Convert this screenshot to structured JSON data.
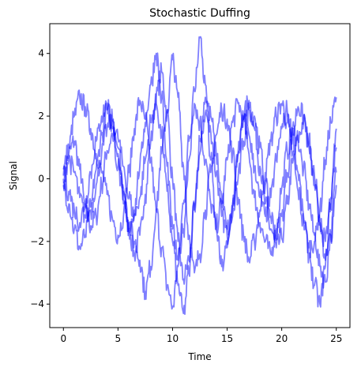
{
  "chart_data": {
    "type": "line",
    "title": "Stochastic Duffing",
    "xlabel": "Time",
    "ylabel": "Signal",
    "xlim": [
      -1.25,
      26.25
    ],
    "ylim": [
      -4.75,
      4.95
    ],
    "xticks": [
      0,
      5,
      10,
      15,
      20,
      25
    ],
    "yticks": [
      -4,
      -2,
      0,
      2,
      4
    ],
    "xtick_labels": [
      "0",
      "5",
      "10",
      "15",
      "20",
      "25"
    ],
    "ytick_labels": [
      "−4",
      "−2",
      "0",
      "2",
      "4"
    ],
    "grid": false,
    "legend": "none",
    "line_color": "#0000ff",
    "line_alpha": 0.5,
    "series": [
      {
        "x": [
          0,
          0.5,
          1,
          1.5,
          2,
          2.5,
          3,
          3.5,
          4,
          4.5,
          5,
          5.5,
          6,
          6.5,
          7,
          7.5,
          8,
          8.5,
          9,
          9.5,
          10,
          10.5,
          11,
          11.5,
          12,
          12.5,
          13,
          13.5,
          14,
          14.5,
          15,
          15.5,
          16,
          16.5,
          17,
          17.5,
          18,
          18.5,
          19,
          19.5,
          20,
          20.5,
          21,
          21.5,
          22,
          22.5,
          23,
          23.5,
          24,
          24.5,
          25
        ],
        "y": [
          0,
          0.8,
          1.2,
          0.3,
          -0.9,
          -1.5,
          -1.2,
          -0.2,
          0.9,
          1.4,
          1.0,
          -0.3,
          -1.6,
          -2.4,
          -1.8,
          -0.5,
          1.2,
          2.6,
          3.4,
          2.1,
          0.0,
          -2.0,
          -3.2,
          -2.6,
          -1.0,
          0.8,
          2.1,
          1.5,
          0.2,
          -1.2,
          -1.8,
          -0.9,
          0.8,
          2.0,
          2.5,
          1.6,
          0.4,
          -0.8,
          -1.6,
          -2.2,
          -1.9,
          -0.8,
          0.5,
          1.3,
          1.8,
          1.2,
          0.1,
          -1.3,
          -2.6,
          -1.8,
          -0.2
        ]
      },
      {
        "x": [
          0,
          0.5,
          1,
          1.5,
          2,
          2.5,
          3,
          3.5,
          4,
          4.5,
          5,
          5.5,
          6,
          6.5,
          7,
          7.5,
          8,
          8.5,
          9,
          9.5,
          10,
          10.5,
          11,
          11.5,
          12,
          12.5,
          13,
          13.5,
          14,
          14.5,
          15,
          15.5,
          16,
          16.5,
          17,
          17.5,
          18,
          18.5,
          19,
          19.5,
          20,
          20.5,
          21,
          21.5,
          22,
          22.5,
          23,
          23.5,
          24,
          24.5,
          25
        ],
        "y": [
          0.3,
          1.0,
          2.0,
          2.6,
          2.3,
          1.6,
          0.8,
          0.2,
          -0.5,
          -1.3,
          -1.8,
          -1.2,
          0.2,
          1.6,
          2.5,
          1.9,
          0.6,
          -1.0,
          -2.2,
          -3.4,
          -4.1,
          -2.8,
          -0.8,
          1.2,
          2.4,
          1.8,
          0.6,
          -0.8,
          -1.5,
          -0.8,
          0.6,
          1.8,
          2.4,
          1.9,
          0.8,
          -0.6,
          -1.4,
          -2.0,
          -2.4,
          -1.6,
          -0.3,
          0.9,
          1.6,
          1.2,
          0.3,
          -0.8,
          -1.8,
          -2.8,
          -3.3,
          -1.8,
          0.2
        ]
      },
      {
        "x": [
          0,
          0.5,
          1,
          1.5,
          2,
          2.5,
          3,
          3.5,
          4,
          4.5,
          5,
          5.5,
          6,
          6.5,
          7,
          7.5,
          8,
          8.5,
          9,
          9.5,
          10,
          10.5,
          11,
          11.5,
          12,
          12.5,
          13,
          13.5,
          14,
          14.5,
          15,
          15.5,
          16,
          16.5,
          17,
          17.5,
          18,
          18.5,
          19,
          19.5,
          20,
          20.5,
          21,
          21.5,
          22,
          22.5,
          23,
          23.5,
          24,
          24.5,
          25
        ],
        "y": [
          -0.2,
          -0.8,
          -1.6,
          -2.2,
          -1.8,
          -0.9,
          0.3,
          1.4,
          2.2,
          1.8,
          0.8,
          -0.4,
          -1.4,
          -2.0,
          -2.6,
          -3.6,
          -2.8,
          -1.0,
          0.8,
          2.2,
          3.8,
          2.6,
          0.4,
          -1.8,
          -3.0,
          -2.4,
          -1.0,
          0.2,
          1.4,
          2.2,
          1.9,
          0.8,
          -0.6,
          -1.8,
          -2.6,
          -2.0,
          -1.0,
          0.2,
          1.2,
          2.0,
          2.4,
          1.8,
          0.8,
          -0.4,
          -1.4,
          -2.2,
          -2.0,
          -1.0,
          0.6,
          1.8,
          2.6
        ]
      },
      {
        "x": [
          0,
          0.5,
          1,
          1.5,
          2,
          2.5,
          3,
          3.5,
          4,
          4.5,
          5,
          5.5,
          6,
          6.5,
          7,
          7.5,
          8,
          8.5,
          9,
          9.5,
          10,
          10.5,
          11,
          11.5,
          12,
          12.5,
          13,
          13.5,
          14,
          14.5,
          15,
          15.5,
          16,
          16.5,
          17,
          17.5,
          18,
          18.5,
          19,
          19.5,
          20,
          20.5,
          21,
          21.5,
          22,
          22.5,
          23,
          23.5,
          24,
          24.5,
          25
        ],
        "y": [
          0.1,
          0.6,
          0.2,
          -0.6,
          -1.2,
          -1.0,
          -0.2,
          0.8,
          1.6,
          1.9,
          1.3,
          0.4,
          -0.6,
          -1.2,
          -0.6,
          0.6,
          1.8,
          2.4,
          1.4,
          -0.4,
          -2.0,
          -3.4,
          -4.3,
          -3.0,
          -0.8,
          1.2,
          2.6,
          2.0,
          0.8,
          -0.6,
          -1.6,
          -1.2,
          0.0,
          1.2,
          2.2,
          2.0,
          1.0,
          -0.2,
          -1.2,
          -1.8,
          -1.2,
          0.2,
          1.4,
          2.3,
          2.0,
          1.0,
          -0.2,
          -1.4,
          -2.0,
          -0.8,
          1.0
        ]
      },
      {
        "x": [
          0,
          0.5,
          1,
          1.5,
          2,
          2.5,
          3,
          3.5,
          4,
          4.5,
          5,
          5.5,
          6,
          6.5,
          7,
          7.5,
          8,
          8.5,
          9,
          9.5,
          10,
          10.5,
          11,
          11.5,
          12,
          12.5,
          13,
          13.5,
          14,
          14.5,
          15,
          15.5,
          16,
          16.5,
          17,
          17.5,
          18,
          18.5,
          19,
          19.5,
          20,
          20.5,
          21,
          21.5,
          22,
          22.5,
          23,
          23.5,
          24,
          24.5,
          25
        ],
        "y": [
          -0.1,
          -0.4,
          -1.0,
          -1.4,
          -0.8,
          0.2,
          1.2,
          2.0,
          2.4,
          1.6,
          0.4,
          -0.8,
          -1.6,
          -1.0,
          0.4,
          1.8,
          3.0,
          4.0,
          2.6,
          0.4,
          -1.6,
          -2.6,
          -1.6,
          0.6,
          2.8,
          4.5,
          3.0,
          0.6,
          -1.6,
          -2.8,
          -2.2,
          -0.8,
          0.8,
          1.9,
          1.4,
          0.4,
          -0.6,
          -1.2,
          -0.6,
          0.6,
          1.6,
          2.2,
          1.4,
          0.2,
          -1.2,
          -2.4,
          -3.4,
          -4.0,
          -2.8,
          -0.6,
          1.6
        ]
      }
    ]
  }
}
